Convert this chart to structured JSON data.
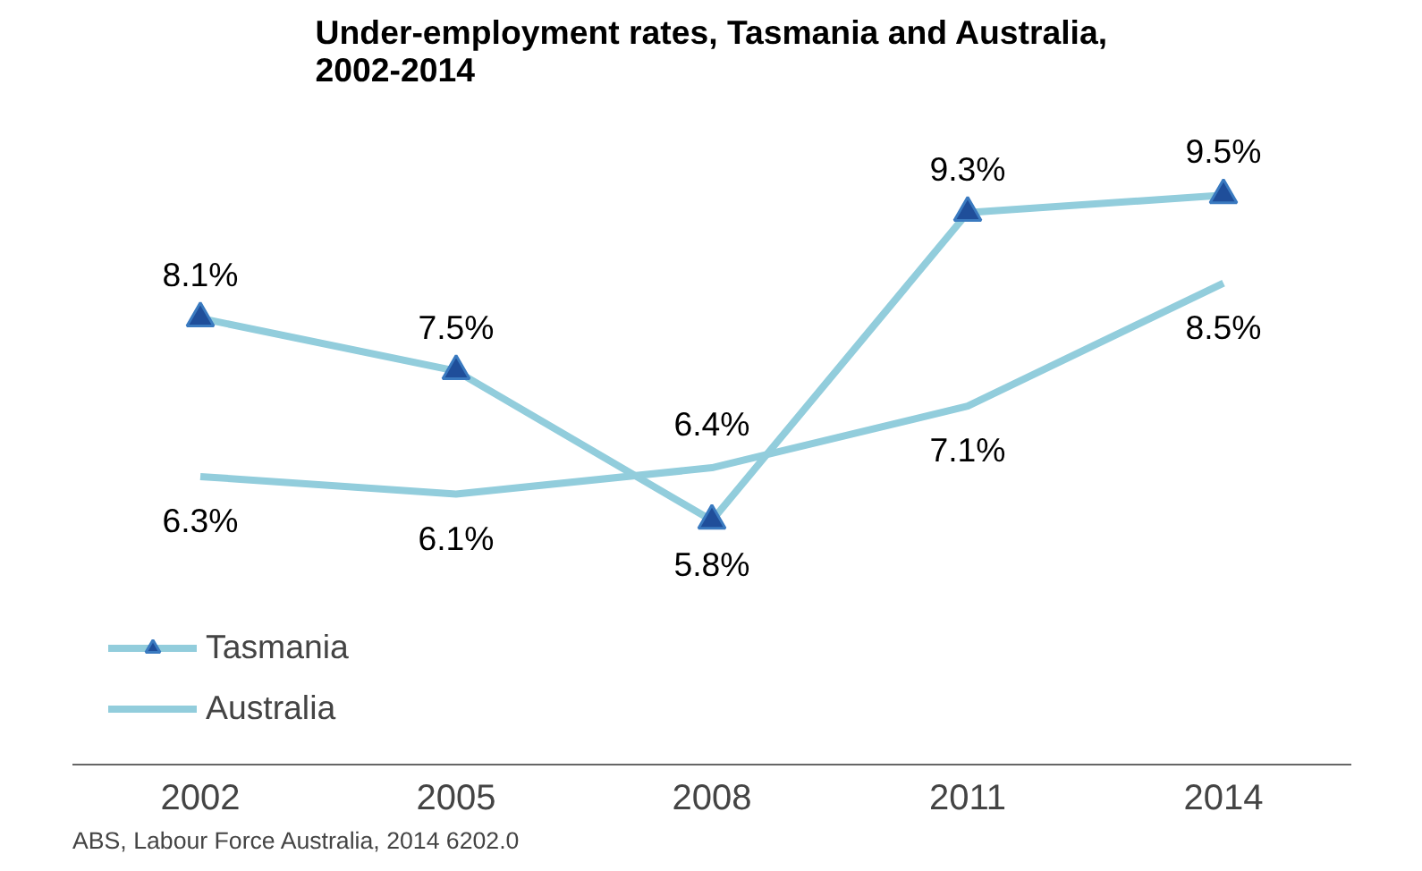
{
  "chart_data": {
    "type": "line",
    "title": "Under-employment rates, Tasmania and Australia,\n2002-2014",
    "categories": [
      "2002",
      "2005",
      "2008",
      "2011",
      "2014"
    ],
    "series": [
      {
        "name": "Tasmania",
        "color": "#92cddc",
        "values": [
          8.1,
          7.5,
          5.8,
          9.3,
          9.5
        ],
        "marker": "triangle",
        "value_labels": [
          "8.1%",
          "7.5%",
          "5.8%",
          "9.3%",
          "9.5%"
        ]
      },
      {
        "name": "Australia",
        "color": "#92cddc",
        "values": [
          6.3,
          6.1,
          6.4,
          7.1,
          8.5
        ],
        "marker": "none",
        "value_labels": [
          "6.3%",
          "6.1%",
          "6.4%",
          "7.1%",
          "8.5%"
        ]
      }
    ],
    "legend": "bottom left",
    "grid": false,
    "tick_labels": "x",
    "annotations": [
      "ABS, Labour Force Australia, 2014  6202.0"
    ]
  }
}
